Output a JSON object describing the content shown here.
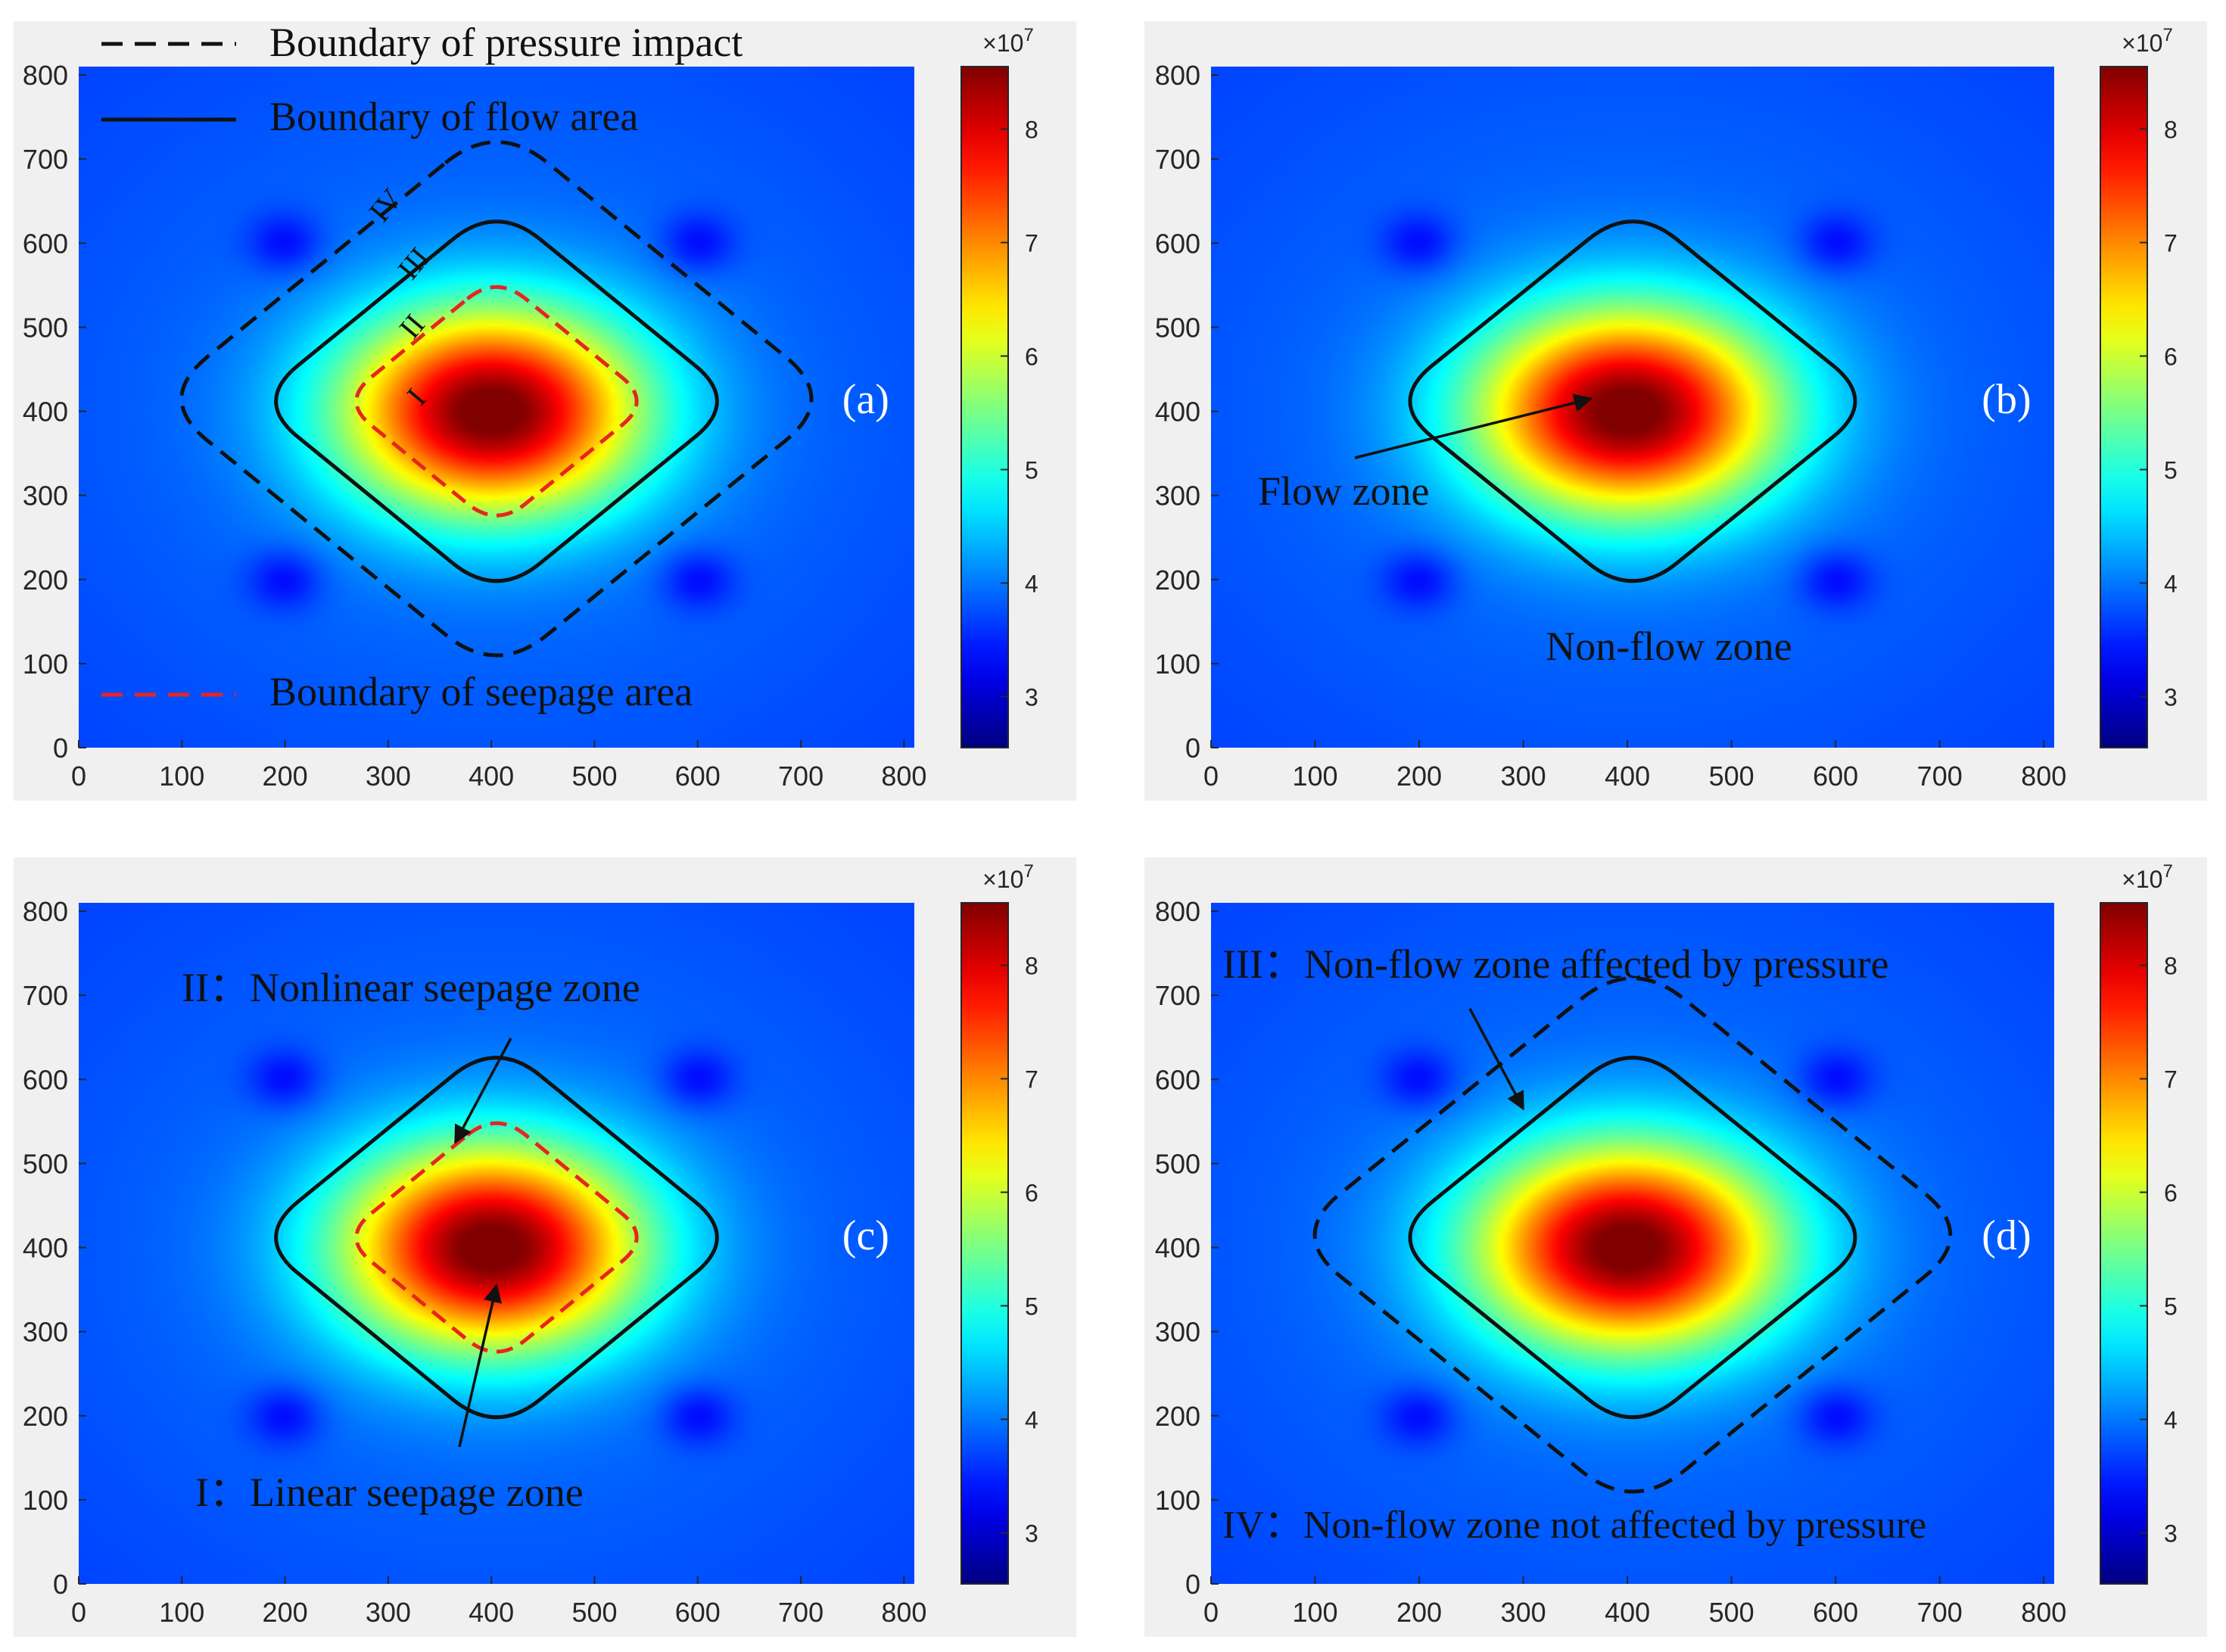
{
  "chart_data": {
    "type": "heatmap",
    "quantity": "pressure",
    "x": {
      "ticks": [
        0,
        100,
        200,
        300,
        400,
        500,
        600,
        700,
        800
      ],
      "range": [
        0,
        810
      ]
    },
    "y": {
      "ticks": [
        0,
        100,
        200,
        300,
        400,
        500,
        600,
        700,
        800
      ],
      "range": [
        0,
        810
      ]
    },
    "colorbar": {
      "exponent_label": "×10",
      "exponent_power": "7",
      "ticks": [
        3,
        4,
        5,
        6,
        7,
        8
      ],
      "range": [
        2.55,
        8.55
      ],
      "colormap": "jet"
    },
    "field": {
      "injection_well": [
        400,
        400
      ],
      "production_wells": [
        [
          200,
          200
        ],
        [
          600,
          200
        ],
        [
          200,
          600
        ],
        [
          600,
          600
        ]
      ],
      "boundaries": {
        "pressure_impact": {
          "center": [
            405,
            415
          ],
          "radius": 330,
          "corner_radius": 70,
          "style": "dashed",
          "color": "#111111"
        },
        "flow_area": {
          "center": [
            405,
            412
          ],
          "radius": 235,
          "corner_radius": 60,
          "style": "solid",
          "color": "#111111"
        },
        "seepage_area": {
          "center": [
            405,
            412
          ],
          "radius": 150,
          "corner_radius": 40,
          "style": "dashed",
          "color": "#e8251e"
        }
      }
    },
    "panels": [
      {
        "id": "a",
        "label": "(a)",
        "boundaries": [
          "pressure_impact",
          "flow_area",
          "seepage_area"
        ],
        "legend": [
          {
            "text": "Boundary of pressure impact",
            "style": "dashed",
            "color": "#111111"
          },
          {
            "text": "Boundary of flow area",
            "style": "solid",
            "color": "#111111"
          },
          {
            "text": "Boundary of seepage area",
            "style": "dashed",
            "color": "#e8251e"
          }
        ],
        "region_labels": [
          "IV",
          "III",
          "II",
          "I"
        ]
      },
      {
        "id": "b",
        "label": "(b)",
        "boundaries": [
          "flow_area"
        ],
        "annotations": [
          {
            "text": "Flow zone",
            "arrow_to": [
              365,
              415
            ]
          },
          {
            "text": "Non-flow zone"
          }
        ]
      },
      {
        "id": "c",
        "label": "(c)",
        "boundaries": [
          "flow_area",
          "seepage_area"
        ],
        "annotations": [
          {
            "text": "II：Nonlinear seepage zone",
            "arrow_to": [
              365,
              525
            ]
          },
          {
            "text": "I：Linear seepage zone",
            "arrow_to": [
              405,
              355
            ]
          }
        ]
      },
      {
        "id": "d",
        "label": "(d)",
        "boundaries": [
          "pressure_impact",
          "flow_area"
        ],
        "annotations": [
          {
            "text": "III：Non-flow zone affected by pressure",
            "arrow_to": [
              300,
              565
            ]
          },
          {
            "text": "IV：Non-flow zone not affected by pressure"
          }
        ]
      }
    ]
  }
}
